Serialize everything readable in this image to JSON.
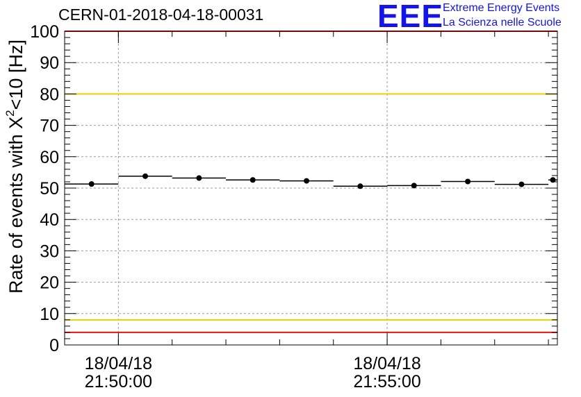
{
  "title": "CERN-01-2018-04-18-00031",
  "logo": {
    "mark": "EEE",
    "line1": "Extreme Energy Events",
    "line2": "La Scienza nelle Scuole"
  },
  "chart_data": {
    "type": "scatter",
    "title": "CERN-01-2018-04-18-00031",
    "ylabel": {
      "prefix": "Rate of events with X",
      "superscript": "2",
      "suffix": "<10 [Hz]"
    },
    "xlabel": "",
    "ylim": [
      0,
      100
    ],
    "yticks": [
      "0",
      "10",
      "20",
      "30",
      "40",
      "50",
      "60",
      "70",
      "80",
      "90",
      "100"
    ],
    "xlim": [
      "21:49:00",
      "21:58:10"
    ],
    "xticks": [
      {
        "time": "21:50:00",
        "date": "18/04/18",
        "label": "21:50:00"
      },
      {
        "time": "21:55:00",
        "date": "18/04/18",
        "label": "21:55:00"
      }
    ],
    "grid": true,
    "reference_lines": [
      {
        "value": 100,
        "color": "#ee1111"
      },
      {
        "value": 80,
        "color": "#f0cc00"
      },
      {
        "value": 8,
        "color": "#f0cc00"
      },
      {
        "value": 4,
        "color": "#ee1111"
      }
    ],
    "series": [
      {
        "points": [
          {
            "start": "21:49:00",
            "end": "21:50:00",
            "x": "21:49:30",
            "y": 51.3
          },
          {
            "start": "21:50:00",
            "end": "21:51:00",
            "x": "21:50:30",
            "y": 53.8
          },
          {
            "start": "21:51:00",
            "end": "21:52:00",
            "x": "21:51:30",
            "y": 53.2
          },
          {
            "start": "21:52:00",
            "end": "21:53:00",
            "x": "21:52:30",
            "y": 52.6
          },
          {
            "start": "21:53:00",
            "end": "21:54:00",
            "x": "21:53:30",
            "y": 52.3
          },
          {
            "start": "21:54:00",
            "end": "21:55:00",
            "x": "21:54:30",
            "y": 50.6
          },
          {
            "start": "21:55:00",
            "end": "21:56:00",
            "x": "21:55:30",
            "y": 50.8
          },
          {
            "start": "21:56:00",
            "end": "21:57:00",
            "x": "21:56:30",
            "y": 52.1
          },
          {
            "start": "21:57:00",
            "end": "21:58:00",
            "x": "21:57:30",
            "y": 51.2
          },
          {
            "start": "21:58:00",
            "end": "21:58:10",
            "x": "21:58:05",
            "y": 52.6
          }
        ],
        "color": "#000000"
      }
    ],
    "colors": {
      "ref_red": "#ee1111",
      "ref_yellow": "#f0cc00",
      "logo_blue": "#1414e6",
      "grid": "#999999"
    }
  }
}
